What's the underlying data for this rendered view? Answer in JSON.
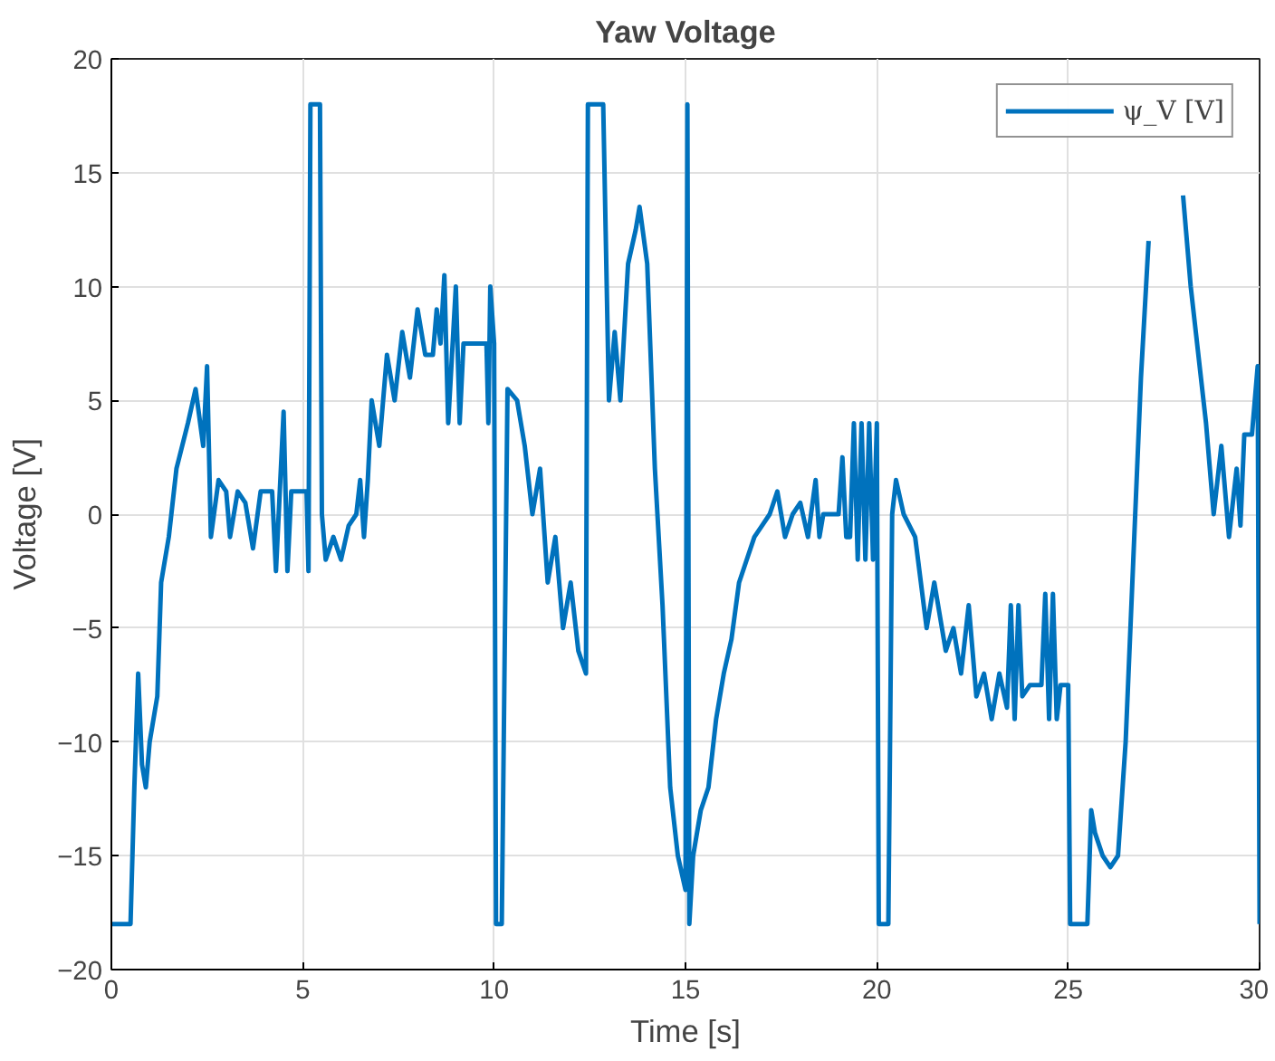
{
  "chart_data": {
    "type": "line",
    "title": "Yaw Voltage",
    "xlabel": "Time [s]",
    "ylabel": "Voltage [V]",
    "xlim": [
      0,
      30
    ],
    "ylim": [
      -20,
      20
    ],
    "xticks": [
      0,
      5,
      10,
      15,
      20,
      25,
      30
    ],
    "yticks": [
      -20,
      -15,
      -10,
      -5,
      0,
      5,
      10,
      15,
      20
    ],
    "grid": true,
    "legend": "top right",
    "x": [
      0,
      0.5,
      0.6,
      0.7,
      0.8,
      0.9,
      1.0,
      1.2,
      1.3,
      1.5,
      1.7,
      2.0,
      2.2,
      2.4,
      2.5,
      2.6,
      2.8,
      3.0,
      3.1,
      3.3,
      3.5,
      3.7,
      3.9,
      4.2,
      4.3,
      4.5,
      4.6,
      4.7,
      5.1,
      5.15,
      5.2,
      5.45,
      5.5,
      5.6,
      5.8,
      6.0,
      6.2,
      6.4,
      6.5,
      6.6,
      6.7,
      6.8,
      7.0,
      7.2,
      7.4,
      7.6,
      7.8,
      8.0,
      8.2,
      8.4,
      8.5,
      8.6,
      8.7,
      8.8,
      9.0,
      9.1,
      9.2,
      9.8,
      9.85,
      9.9,
      10.0,
      10.05,
      10.2,
      10.35,
      10.6,
      10.8,
      11.0,
      11.2,
      11.4,
      11.6,
      11.8,
      12.0,
      12.2,
      12.4,
      12.45,
      12.85,
      13.0,
      13.15,
      13.3,
      13.5,
      13.7,
      13.8,
      14.0,
      14.2,
      14.4,
      14.6,
      14.8,
      15.0,
      15.05,
      15.1,
      15.2,
      15.4,
      15.6,
      15.8,
      16.0,
      16.2,
      16.4,
      16.6,
      16.8,
      17.0,
      17.2,
      17.4,
      17.6,
      17.8,
      18.0,
      18.2,
      18.4,
      18.5,
      18.6,
      19.0,
      19.1,
      19.2,
      19.3,
      19.4,
      19.5,
      19.6,
      19.7,
      19.8,
      19.9,
      20.0,
      20.05,
      20.3,
      20.4,
      20.5,
      20.7,
      21.0,
      21.3,
      21.5,
      21.8,
      22.0,
      22.2,
      22.4,
      22.6,
      22.8,
      23.0,
      23.2,
      23.4,
      23.5,
      23.6,
      23.7,
      23.8,
      24.0,
      24.3,
      24.4,
      24.5,
      24.6,
      24.7,
      24.8,
      25.0,
      25.05,
      25.5,
      25.6,
      25.7,
      25.9,
      26.1,
      26.3,
      26.5,
      26.7,
      26.9,
      27.1,
      27.3,
      27.45,
      27.9,
      28.0,
      28.2,
      28.4,
      28.6,
      28.8,
      29.0,
      29.2,
      29.4,
      29.5,
      29.6,
      29.8,
      29.95,
      30
    ],
    "series": [
      {
        "name": "ψ_V [V]",
        "color": "#0072bd",
        "values": [
          -18,
          -18,
          -12,
          -7,
          -11,
          -12,
          -10,
          -8,
          -3,
          -1,
          2,
          4,
          5.5,
          3,
          6.5,
          -1,
          1.5,
          1,
          -1,
          1,
          0.5,
          -1.5,
          1,
          1,
          -2.5,
          4.5,
          -2.5,
          1,
          1,
          -2.5,
          18,
          18,
          0,
          -2,
          -1,
          -2,
          -0.5,
          0,
          1.5,
          -1,
          1.5,
          5,
          3,
          7,
          5,
          8,
          6,
          9,
          7,
          7,
          9,
          7.5,
          10.5,
          4,
          10,
          4,
          7.5,
          7.5,
          4,
          10,
          7.5,
          -18,
          -18,
          5.5,
          5,
          3,
          0,
          2,
          -3,
          -1,
          -5,
          -3,
          -6,
          -7,
          18,
          18,
          5,
          8,
          5,
          11,
          12.5,
          13.5,
          11,
          2,
          -4,
          -12,
          -15,
          -16.5,
          18,
          -18,
          -15,
          -13,
          -12,
          -9,
          -7,
          -5.5,
          -3,
          -2,
          -1,
          -0.5,
          0,
          1,
          -1,
          0,
          0.5,
          -1,
          1.5,
          -1,
          0,
          0,
          2.5,
          -1,
          -1,
          4,
          -2,
          4,
          -2,
          4,
          -2,
          4,
          -18,
          -18,
          0,
          1.5,
          0,
          -1,
          -5,
          -3,
          -6,
          -5,
          -7,
          -4,
          -8,
          -7,
          -9,
          -7,
          -8.5,
          -4,
          -9,
          -4,
          -8,
          -7.5,
          -7.5,
          -3.5,
          -9,
          -3.5,
          -9,
          -7.5,
          -7.5,
          -18,
          -18,
          -13,
          -14,
          -15,
          -15.5,
          -15,
          -10,
          -2,
          6,
          12,
          null,
          null,
          null,
          14,
          10,
          7,
          4,
          0,
          3,
          -1,
          2,
          -0.5,
          3.5,
          3.5,
          6.5,
          -18
        ]
      }
    ]
  }
}
